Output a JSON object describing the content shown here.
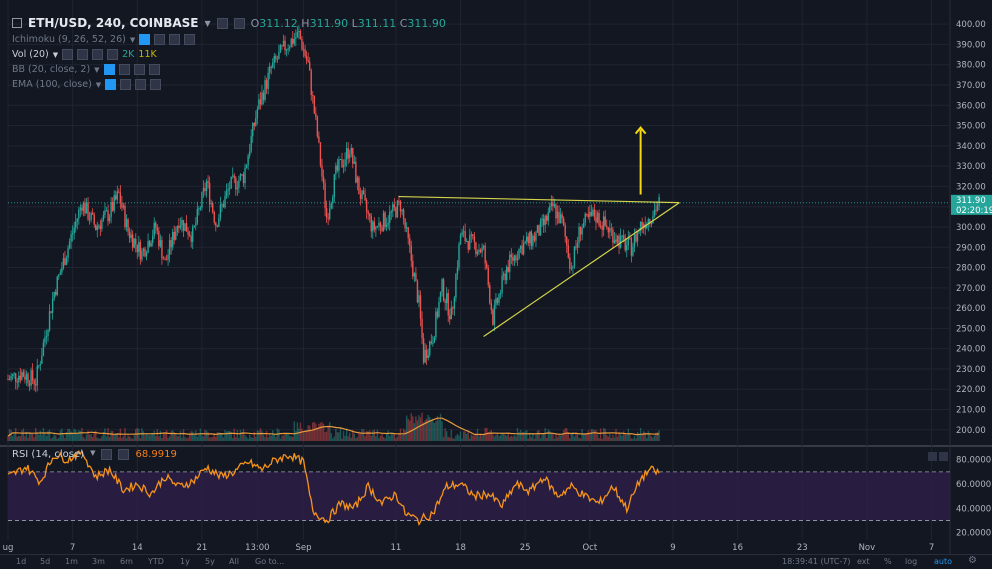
{
  "header": {
    "symbol": "ETH/USD, 240, COINBASE",
    "o_label": "O",
    "o": "311.12",
    "h_label": "H",
    "h": "311.90",
    "l_label": "L",
    "l": "311.11",
    "c_label": "C",
    "c": "311.90"
  },
  "indicators": {
    "ichimoku": "Ichimoku (9, 26, 52, 26)",
    "vol": "Vol (20)",
    "vol_v1": "2K",
    "vol_v2": "11K",
    "bb": "BB (20, close, 2)",
    "ema": "EMA (100, close)"
  },
  "rsi": {
    "label": "RSI (14, close)",
    "value": "68.9919"
  },
  "price_tag": {
    "price": "311.90",
    "countdown": "02:20:19"
  },
  "toolbar": {
    "ranges": [
      "1d",
      "5d",
      "1m",
      "3m",
      "6m",
      "YTD",
      "1y",
      "5y",
      "All",
      "Go to..."
    ],
    "clock": "18:39:41 (UTC-7)",
    "right": [
      "ext",
      "%",
      "log",
      "auto"
    ]
  },
  "colors": {
    "background": "#131722",
    "up": "#26a69a",
    "down": "#ef5350",
    "drawing": "#d4d44a",
    "arrow": "#f5d80f",
    "rsi": "#f7931a",
    "rsi_band": "#2d1f45",
    "volume_ma": "#e89a3c"
  },
  "chart_data": [
    {
      "type": "candlestick",
      "title": "ETH/USD, 240, COINBASE",
      "y_ticks": [
        200,
        210,
        220,
        230,
        240,
        250,
        260,
        270,
        280,
        290,
        300,
        310,
        320,
        330,
        340,
        350,
        360,
        370,
        380,
        390,
        400
      ],
      "y_tick_labels": [
        "200.00",
        "210.00",
        "220.00",
        "230.00",
        "240.00",
        "250.00",
        "260.00",
        "270.00",
        "280.00",
        "290.00",
        "300.00",
        "310.00",
        "320.00",
        "330.00",
        "340.00",
        "350.00",
        "360.00",
        "370.00",
        "380.00",
        "390.00",
        "400.00"
      ],
      "ylim": [
        193,
        405
      ],
      "x_tick_labels": [
        "ug",
        "7",
        "14",
        "21",
        "13:00",
        "Sep",
        "11",
        "18",
        "25",
        "Oct",
        "9",
        "16",
        "23",
        "Nov",
        "7"
      ],
      "x_tick_days": [
        0,
        7,
        14,
        21,
        27,
        32,
        42,
        49,
        56,
        63,
        72,
        79,
        86,
        93,
        100
      ],
      "last_price": 311.9,
      "price_path": [
        {
          "day": 0,
          "price": 225
        },
        {
          "day": 1.5,
          "price": 228
        },
        {
          "day": 3,
          "price": 224
        },
        {
          "day": 5,
          "price": 268
        },
        {
          "day": 6.5,
          "price": 290
        },
        {
          "day": 8,
          "price": 312
        },
        {
          "day": 9.5,
          "price": 300
        },
        {
          "day": 11,
          "price": 307
        },
        {
          "day": 12,
          "price": 316
        },
        {
          "day": 13,
          "price": 298
        },
        {
          "day": 14.5,
          "price": 287
        },
        {
          "day": 16,
          "price": 300
        },
        {
          "day": 17,
          "price": 282
        },
        {
          "day": 18.5,
          "price": 304
        },
        {
          "day": 20,
          "price": 296
        },
        {
          "day": 21.5,
          "price": 322
        },
        {
          "day": 22.5,
          "price": 302
        },
        {
          "day": 24,
          "price": 320
        },
        {
          "day": 25.5,
          "price": 325
        },
        {
          "day": 27,
          "price": 358
        },
        {
          "day": 28.5,
          "price": 378
        },
        {
          "day": 30,
          "price": 389
        },
        {
          "day": 31.5,
          "price": 395
        },
        {
          "day": 32.5,
          "price": 380
        },
        {
          "day": 33.5,
          "price": 345
        },
        {
          "day": 34.5,
          "price": 305
        },
        {
          "day": 35.5,
          "price": 326
        },
        {
          "day": 37,
          "price": 339
        },
        {
          "day": 38,
          "price": 318
        },
        {
          "day": 39.5,
          "price": 299
        },
        {
          "day": 41,
          "price": 304
        },
        {
          "day": 42.5,
          "price": 311
        },
        {
          "day": 43.5,
          "price": 288
        },
        {
          "day": 44.5,
          "price": 262
        },
        {
          "day": 45,
          "price": 236
        },
        {
          "day": 46,
          "price": 246
        },
        {
          "day": 47,
          "price": 270
        },
        {
          "day": 48,
          "price": 256
        },
        {
          "day": 49,
          "price": 296
        },
        {
          "day": 50.5,
          "price": 291
        },
        {
          "day": 51.5,
          "price": 288
        },
        {
          "day": 52.5,
          "price": 255
        },
        {
          "day": 54,
          "price": 280
        },
        {
          "day": 55.5,
          "price": 290
        },
        {
          "day": 57,
          "price": 295
        },
        {
          "day": 58,
          "price": 301
        },
        {
          "day": 59,
          "price": 310
        },
        {
          "day": 60,
          "price": 302
        },
        {
          "day": 61,
          "price": 280
        },
        {
          "day": 62,
          "price": 300
        },
        {
          "day": 63.5,
          "price": 306
        },
        {
          "day": 65,
          "price": 299
        },
        {
          "day": 66.5,
          "price": 292
        },
        {
          "day": 67.5,
          "price": 290
        },
        {
          "day": 68.5,
          "price": 301
        },
        {
          "day": 69.5,
          "price": 305
        },
        {
          "day": 70.5,
          "price": 311.9
        }
      ],
      "trendlines": [
        {
          "from": {
            "day": 42.3,
            "price": 315
          },
          "to": {
            "day": 72.7,
            "price": 312
          }
        },
        {
          "from": {
            "day": 51.5,
            "price": 246
          },
          "to": {
            "day": 72.7,
            "price": 312
          }
        }
      ],
      "arrow": {
        "day": 68.5,
        "from_price": 316,
        "to_price": 349
      }
    },
    {
      "type": "line",
      "title": "RSI (14, close)",
      "y_ticks": [
        20,
        40,
        60,
        80
      ],
      "y_tick_labels": [
        "20.0000",
        "40.0000",
        "60.0000",
        "80.0000"
      ],
      "ylim": [
        14,
        88
      ],
      "bands": [
        30,
        70
      ],
      "last_value": 68.9919,
      "rsi_path": [
        {
          "day": 0,
          "rsi": 66
        },
        {
          "day": 2,
          "rsi": 74
        },
        {
          "day": 3.5,
          "rsi": 62
        },
        {
          "day": 5,
          "rsi": 84
        },
        {
          "day": 6.5,
          "rsi": 80
        },
        {
          "day": 8,
          "rsi": 87
        },
        {
          "day": 9.5,
          "rsi": 66
        },
        {
          "day": 11,
          "rsi": 72
        },
        {
          "day": 12.5,
          "rsi": 55
        },
        {
          "day": 14,
          "rsi": 60
        },
        {
          "day": 15.5,
          "rsi": 52
        },
        {
          "day": 17,
          "rsi": 66
        },
        {
          "day": 18.5,
          "rsi": 58
        },
        {
          "day": 20,
          "rsi": 62
        },
        {
          "day": 21.5,
          "rsi": 74
        },
        {
          "day": 23,
          "rsi": 66
        },
        {
          "day": 24.5,
          "rsi": 70
        },
        {
          "day": 26,
          "rsi": 78
        },
        {
          "day": 27.5,
          "rsi": 72
        },
        {
          "day": 29,
          "rsi": 80
        },
        {
          "day": 30.5,
          "rsi": 84
        },
        {
          "day": 32,
          "rsi": 78
        },
        {
          "day": 33,
          "rsi": 38
        },
        {
          "day": 34.5,
          "rsi": 30
        },
        {
          "day": 36,
          "rsi": 44
        },
        {
          "day": 37.5,
          "rsi": 40
        },
        {
          "day": 39,
          "rsi": 58
        },
        {
          "day": 40.5,
          "rsi": 44
        },
        {
          "day": 42,
          "rsi": 52
        },
        {
          "day": 43,
          "rsi": 36
        },
        {
          "day": 44.5,
          "rsi": 30
        },
        {
          "day": 46,
          "rsi": 36
        },
        {
          "day": 47.5,
          "rsi": 58
        },
        {
          "day": 49,
          "rsi": 60
        },
        {
          "day": 50.5,
          "rsi": 50
        },
        {
          "day": 52,
          "rsi": 52
        },
        {
          "day": 53.5,
          "rsi": 42
        },
        {
          "day": 55,
          "rsi": 60
        },
        {
          "day": 56.5,
          "rsi": 54
        },
        {
          "day": 58,
          "rsi": 66
        },
        {
          "day": 59.5,
          "rsi": 50
        },
        {
          "day": 61,
          "rsi": 58
        },
        {
          "day": 62.5,
          "rsi": 50
        },
        {
          "day": 64,
          "rsi": 44
        },
        {
          "day": 65.5,
          "rsi": 58
        },
        {
          "day": 67,
          "rsi": 40
        },
        {
          "day": 68.5,
          "rsi": 64
        },
        {
          "day": 69.5,
          "rsi": 72
        },
        {
          "day": 70.5,
          "rsi": 68.9919
        }
      ]
    }
  ]
}
